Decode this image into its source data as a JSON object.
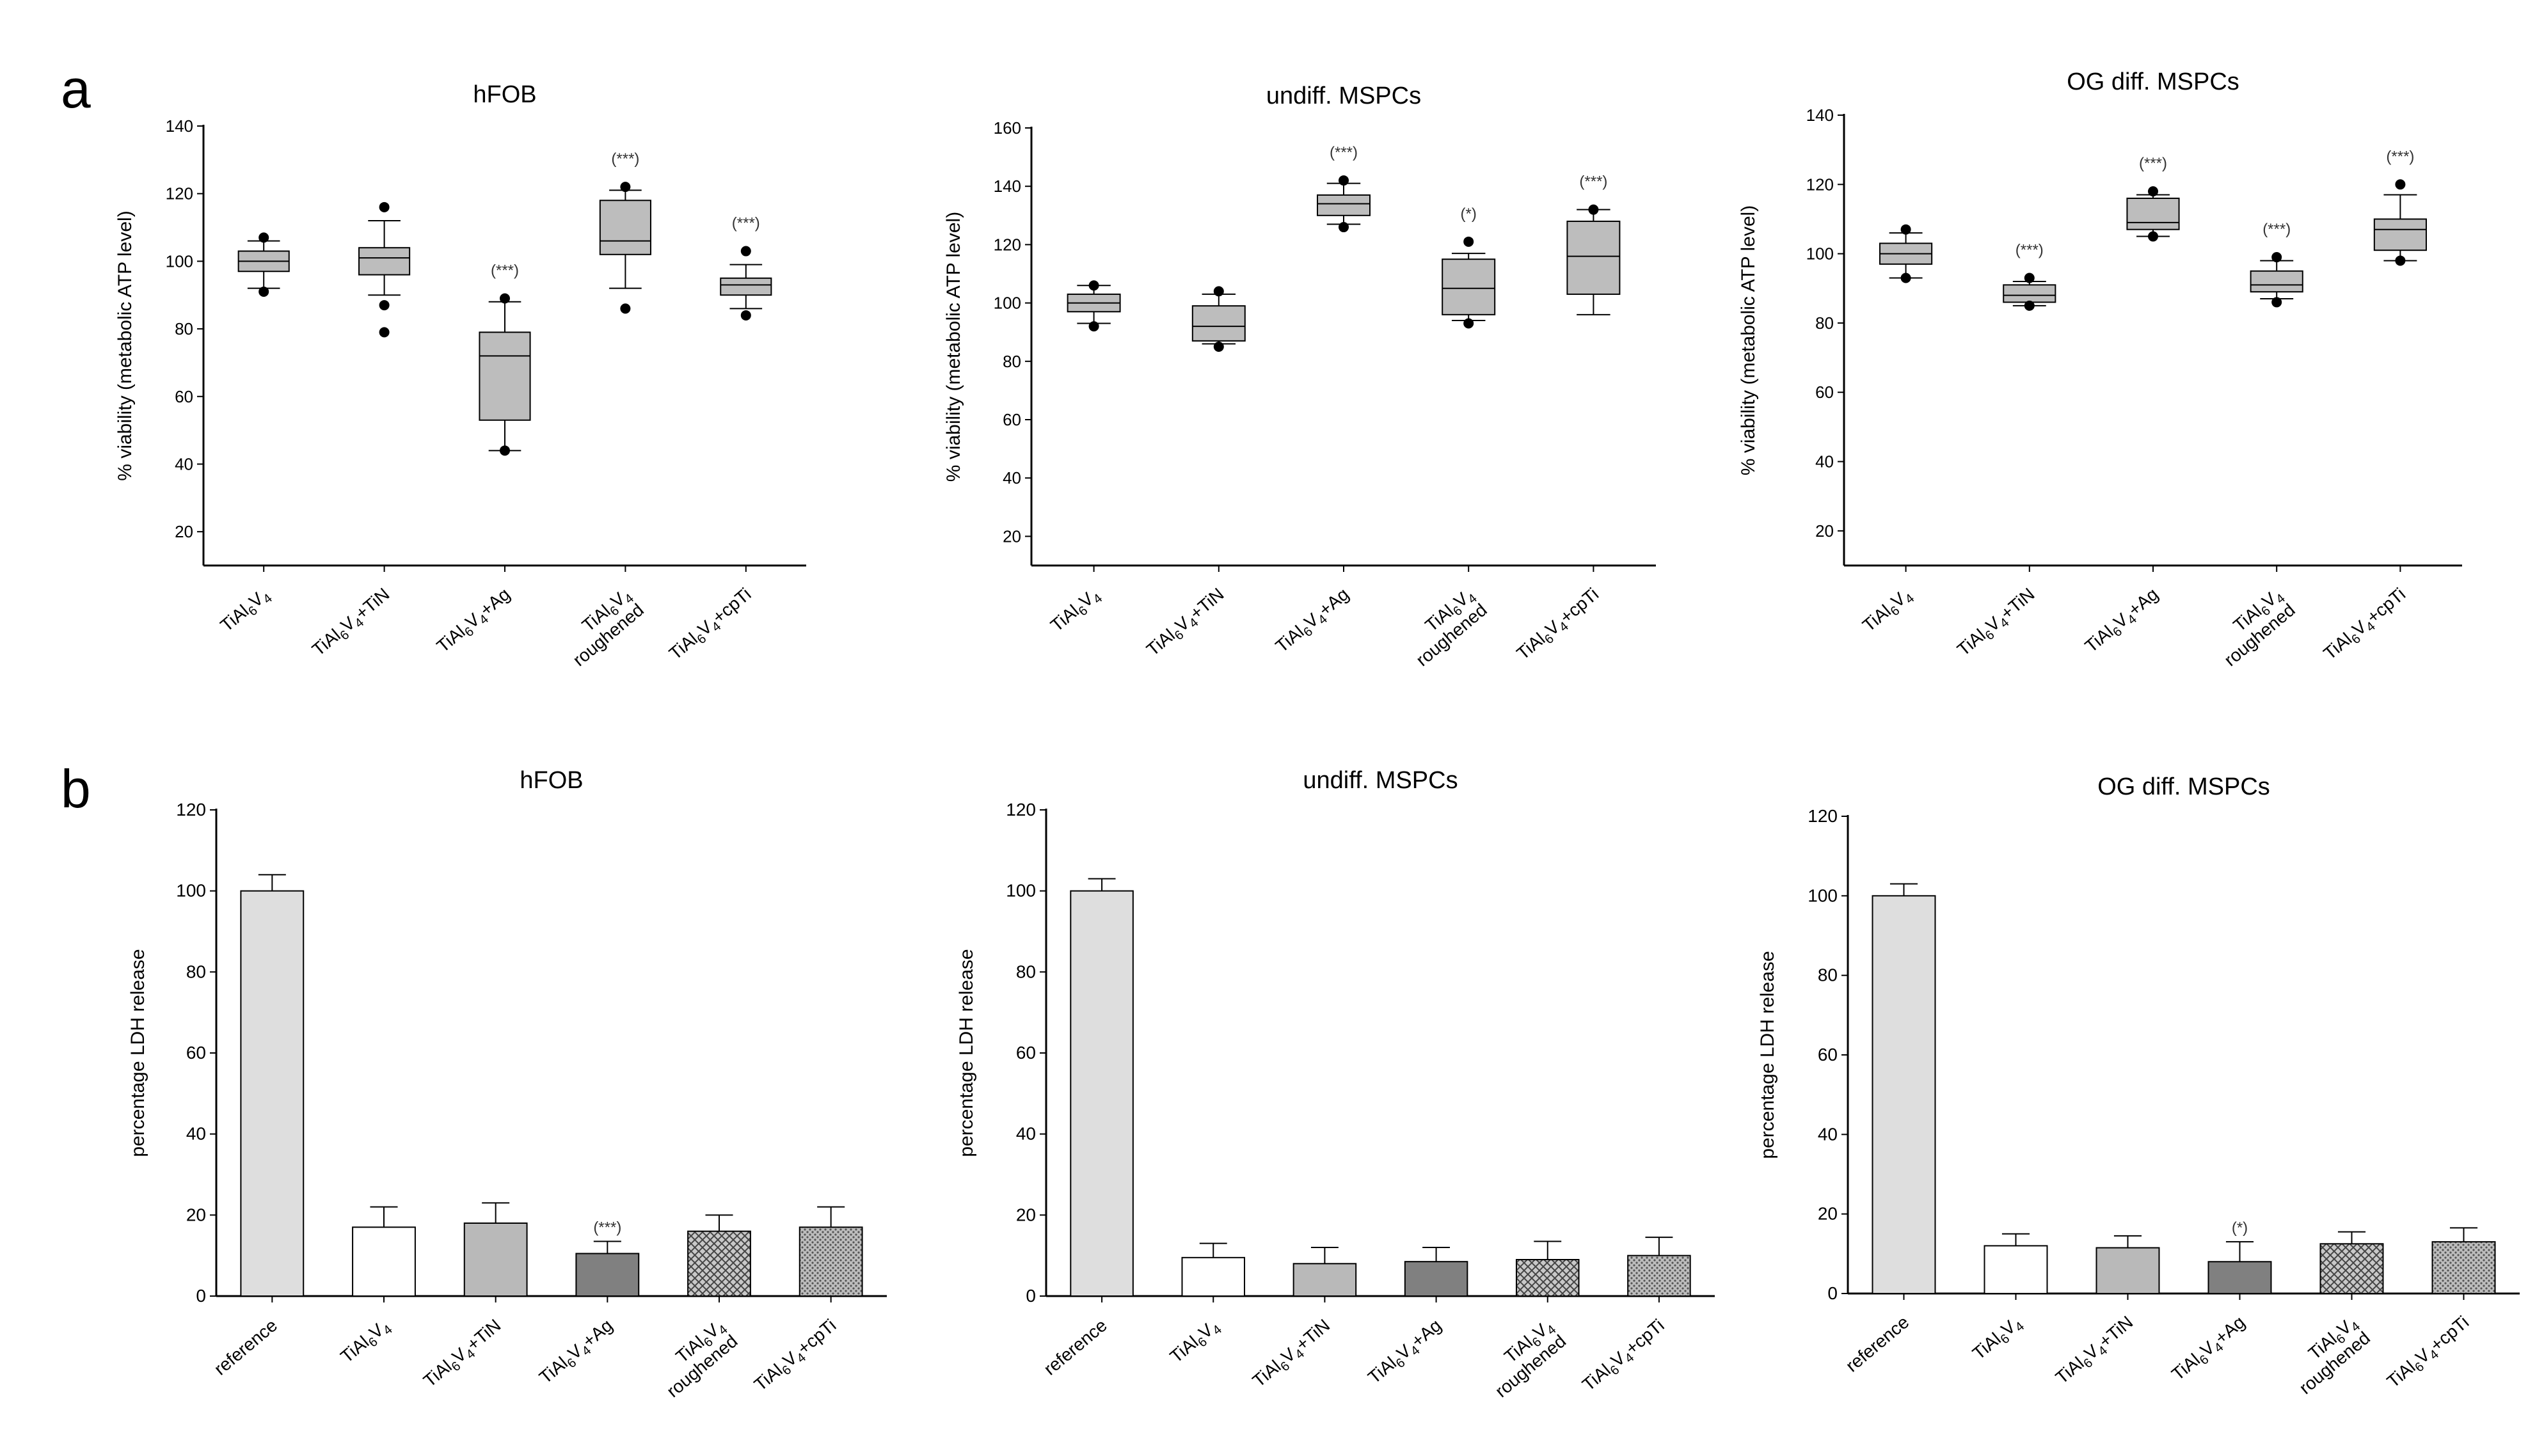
{
  "panel_labels": [
    "a",
    "b"
  ],
  "chart_data": [
    {
      "type": "box",
      "panel": "a",
      "title": "hFOB",
      "ylabel": "% viability (metabolic ATP level)",
      "ylim": [
        10,
        140
      ],
      "yticks": [
        20,
        40,
        60,
        80,
        100,
        120,
        140
      ],
      "categories": [
        "TiAl6V4",
        "TiAl6V4+TiN",
        "TiAl6V4+Ag",
        "TiAl6V4 roughened",
        "TiAl6V4+cpTi"
      ],
      "boxes": [
        {
          "q1": 97,
          "median": 100,
          "q3": 103,
          "whisker_low": 92,
          "whisker_high": 106,
          "outliers": [
            107,
            91
          ],
          "sig": ""
        },
        {
          "q1": 96,
          "median": 101,
          "q3": 104,
          "whisker_low": 90,
          "whisker_high": 112,
          "outliers": [
            116,
            87,
            79
          ],
          "sig": ""
        },
        {
          "q1": 53,
          "median": 72,
          "q3": 79,
          "whisker_low": 44,
          "whisker_high": 88,
          "outliers": [
            89,
            44
          ],
          "sig": "(***)"
        },
        {
          "q1": 102,
          "median": 106,
          "q3": 118,
          "whisker_low": 92,
          "whisker_high": 121,
          "outliers": [
            122,
            86
          ],
          "sig": "(***)"
        },
        {
          "q1": 90,
          "median": 93,
          "q3": 95,
          "whisker_low": 86,
          "whisker_high": 99,
          "outliers": [
            103,
            84
          ],
          "sig": "(***)"
        }
      ]
    },
    {
      "type": "box",
      "panel": "a",
      "title": "undiff. MSPCs",
      "ylabel": "% viability (metabolic ATP level)",
      "ylim": [
        10,
        160
      ],
      "yticks": [
        20,
        40,
        60,
        80,
        100,
        120,
        140,
        160
      ],
      "categories": [
        "TiAl6V4",
        "TiAl6V4+TiN",
        "TiAl6V4+Ag",
        "TiAl6V4 roughened",
        "TiAl6V4+cpTi"
      ],
      "boxes": [
        {
          "q1": 97,
          "median": 100,
          "q3": 103,
          "whisker_low": 93,
          "whisker_high": 106,
          "outliers": [
            106,
            92
          ],
          "sig": ""
        },
        {
          "q1": 87,
          "median": 92,
          "q3": 99,
          "whisker_low": 86,
          "whisker_high": 103,
          "outliers": [
            104,
            85
          ],
          "sig": ""
        },
        {
          "q1": 130,
          "median": 134,
          "q3": 137,
          "whisker_low": 127,
          "whisker_high": 141,
          "outliers": [
            142,
            126
          ],
          "sig": "(***)"
        },
        {
          "q1": 96,
          "median": 105,
          "q3": 115,
          "whisker_low": 94,
          "whisker_high": 117,
          "outliers": [
            121,
            93
          ],
          "sig": "(*)"
        },
        {
          "q1": 103,
          "median": 116,
          "q3": 128,
          "whisker_low": 96,
          "whisker_high": 132,
          "outliers": [
            132
          ],
          "sig": "(***)"
        }
      ]
    },
    {
      "type": "box",
      "panel": "a",
      "title": "OG diff. MSPCs",
      "ylabel": "% viability (metabolic ATP level)",
      "ylim": [
        10,
        140
      ],
      "yticks": [
        20,
        40,
        60,
        80,
        100,
        120,
        140
      ],
      "categories": [
        "TiAl6V4",
        "TiAl6V4+TiN",
        "TiAl6V4+Ag",
        "TiAl6V4 roughened",
        "TiAl6V4+cpTi"
      ],
      "boxes": [
        {
          "q1": 97,
          "median": 100,
          "q3": 103,
          "whisker_low": 93,
          "whisker_high": 106,
          "outliers": [
            107,
            93
          ],
          "sig": ""
        },
        {
          "q1": 86,
          "median": 88,
          "q3": 91,
          "whisker_low": 85,
          "whisker_high": 92,
          "outliers": [
            93,
            85
          ],
          "sig": "(***)"
        },
        {
          "q1": 107,
          "median": 109,
          "q3": 116,
          "whisker_low": 105,
          "whisker_high": 117,
          "outliers": [
            118,
            105
          ],
          "sig": "(***)"
        },
        {
          "q1": 89,
          "median": 91,
          "q3": 95,
          "whisker_low": 87,
          "whisker_high": 98,
          "outliers": [
            99,
            86
          ],
          "sig": "(***)"
        },
        {
          "q1": 101,
          "median": 107,
          "q3": 110,
          "whisker_low": 98,
          "whisker_high": 117,
          "outliers": [
            120,
            98
          ],
          "sig": "(***)"
        }
      ]
    },
    {
      "type": "bar",
      "panel": "b",
      "title": "hFOB",
      "ylabel": "percentage LDH release",
      "ylim": [
        0,
        120
      ],
      "yticks": [
        0,
        20,
        40,
        60,
        80,
        100,
        120
      ],
      "categories": [
        "reference",
        "TiAl6V4",
        "TiAl6V4+TiN",
        "TiAl6V4+Ag",
        "TiAl6V4 roughened",
        "TiAl6V4+cpTi"
      ],
      "values": [
        100,
        17,
        18,
        10.5,
        16,
        17
      ],
      "errors": [
        4,
        5,
        5,
        3,
        4,
        5
      ],
      "sig": [
        "",
        "",
        "",
        "(***)",
        "",
        ""
      ],
      "fills": [
        "light-gray",
        "white",
        "gray",
        "dark-gray",
        "crosshatch",
        "dotted"
      ]
    },
    {
      "type": "bar",
      "panel": "b",
      "title": "undiff. MSPCs",
      "ylabel": "percentage LDH release",
      "ylim": [
        0,
        120
      ],
      "yticks": [
        0,
        20,
        40,
        60,
        80,
        100,
        120
      ],
      "categories": [
        "reference",
        "TiAl6V4",
        "TiAl6V4+TiN",
        "TiAl6V4+Ag",
        "TiAl6V4 roughened",
        "TiAl6V4+cpTi"
      ],
      "values": [
        100,
        9.5,
        8,
        8.5,
        9,
        10
      ],
      "errors": [
        3,
        3.5,
        4,
        3.5,
        4.5,
        4.5
      ],
      "sig": [
        "",
        "",
        "",
        "",
        "",
        ""
      ],
      "fills": [
        "light-gray",
        "white",
        "gray",
        "dark-gray",
        "crosshatch",
        "dotted"
      ]
    },
    {
      "type": "bar",
      "panel": "b",
      "title": "OG diff. MSPCs",
      "ylabel": "percentage LDH release",
      "ylim": [
        0,
        120
      ],
      "yticks": [
        0,
        20,
        40,
        60,
        80,
        100,
        120
      ],
      "categories": [
        "reference",
        "TiAl6V4",
        "TiAl6V4+TiN",
        "TiAl6V4+Ag",
        "TiAl6V4 roughened",
        "TiAl6V4+cpTi"
      ],
      "values": [
        100,
        12,
        11.5,
        8,
        12.5,
        13
      ],
      "errors": [
        3,
        3,
        3,
        5,
        3,
        3.5
      ],
      "sig": [
        "",
        "",
        "",
        "(*)",
        "",
        ""
      ],
      "fills": [
        "light-gray",
        "white",
        "gray",
        "dark-gray",
        "crosshatch",
        "dotted"
      ]
    }
  ]
}
